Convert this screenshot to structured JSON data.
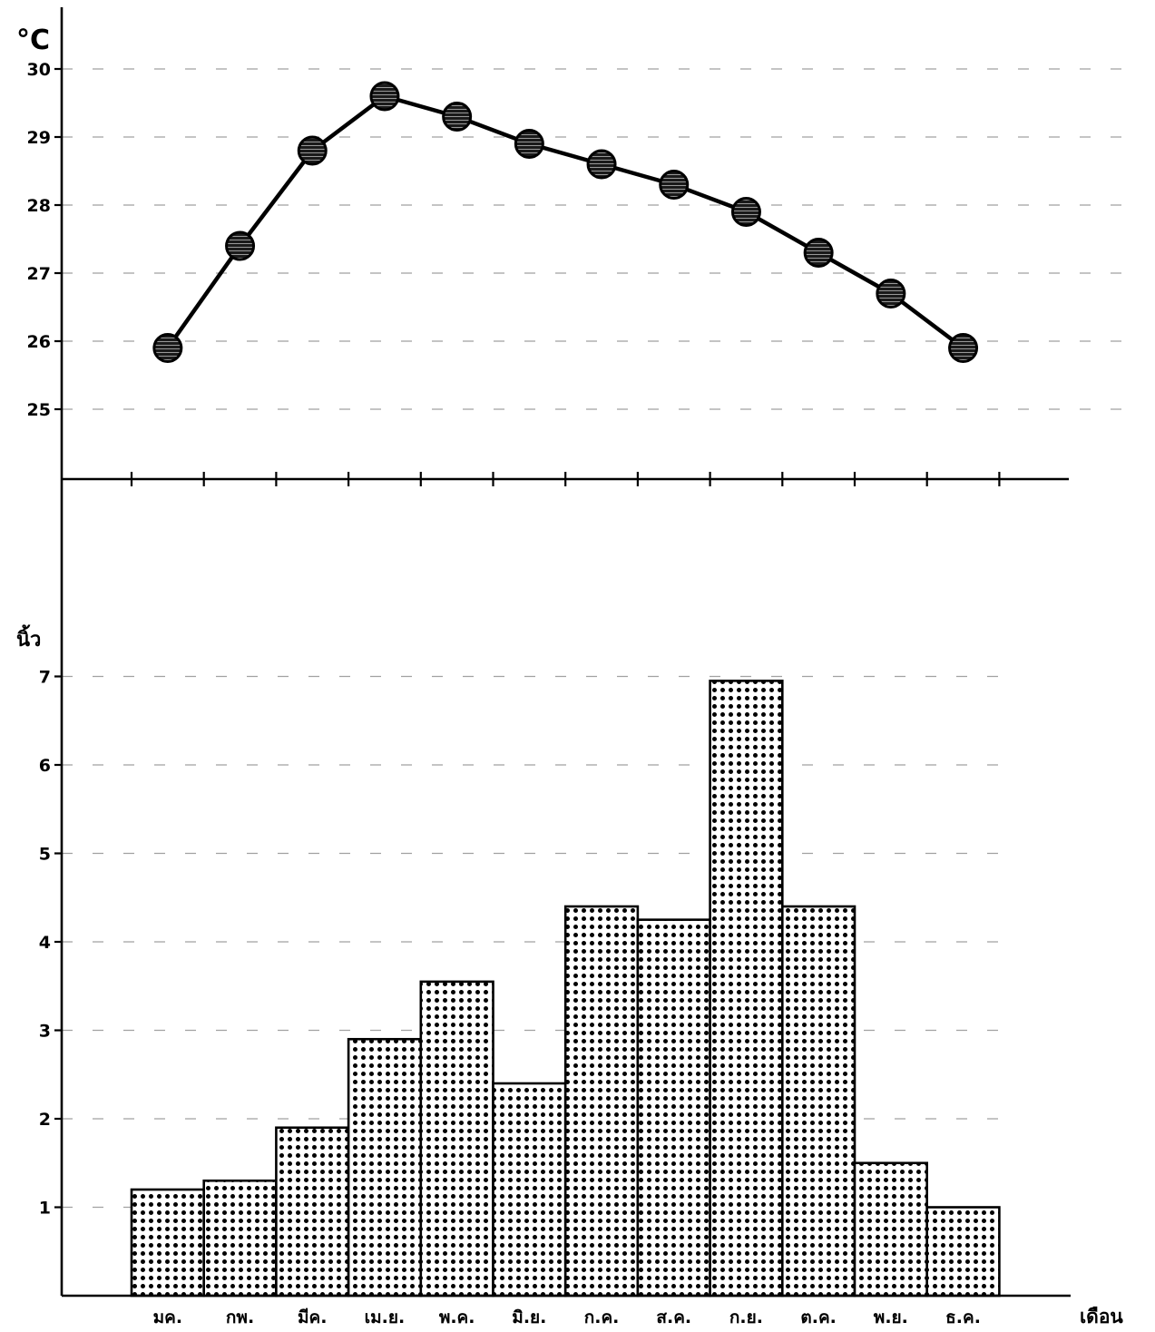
{
  "chart_data": [
    {
      "type": "line",
      "ylabel": "°C",
      "yticks": [
        25,
        26,
        27,
        28,
        29,
        30
      ],
      "ylim": [
        24.0,
        31.0
      ],
      "categories": [
        "มค.",
        "กพ.",
        "มีค.",
        "เม.ย.",
        "พ.ค.",
        "มิ.ย.",
        "ก.ค.",
        "ส.ค.",
        "ก.ย.",
        "ต.ค.",
        "พ.ย.",
        "ธ.ค."
      ],
      "values": [
        25.9,
        27.4,
        28.8,
        29.6,
        29.3,
        28.9,
        28.6,
        28.3,
        27.9,
        27.3,
        26.7,
        25.9
      ],
      "marker": "filled-circle",
      "grid": "dashed"
    },
    {
      "type": "bar",
      "ylabel": "นิ้ว",
      "yticks": [
        1,
        2,
        3,
        4,
        5,
        6,
        7
      ],
      "ylim": [
        0,
        7.3
      ],
      "xlabel": "เดือน",
      "categories": [
        "มค.",
        "กพ.",
        "มีค.",
        "เม.ย.",
        "พ.ค.",
        "มิ.ย.",
        "ก.ค.",
        "ส.ค.",
        "ก.ย.",
        "ต.ค.",
        "พ.ย.",
        "ธ.ค."
      ],
      "values": [
        1.2,
        1.3,
        1.9,
        2.9,
        3.55,
        2.4,
        4.4,
        4.25,
        6.95,
        4.4,
        1.5,
        1.0
      ],
      "fill": "dotted",
      "grid": "dashed"
    }
  ],
  "colors": {
    "ink": "#000000",
    "paper": "#ffffff",
    "marker_hatch": "#cfcfcf"
  }
}
